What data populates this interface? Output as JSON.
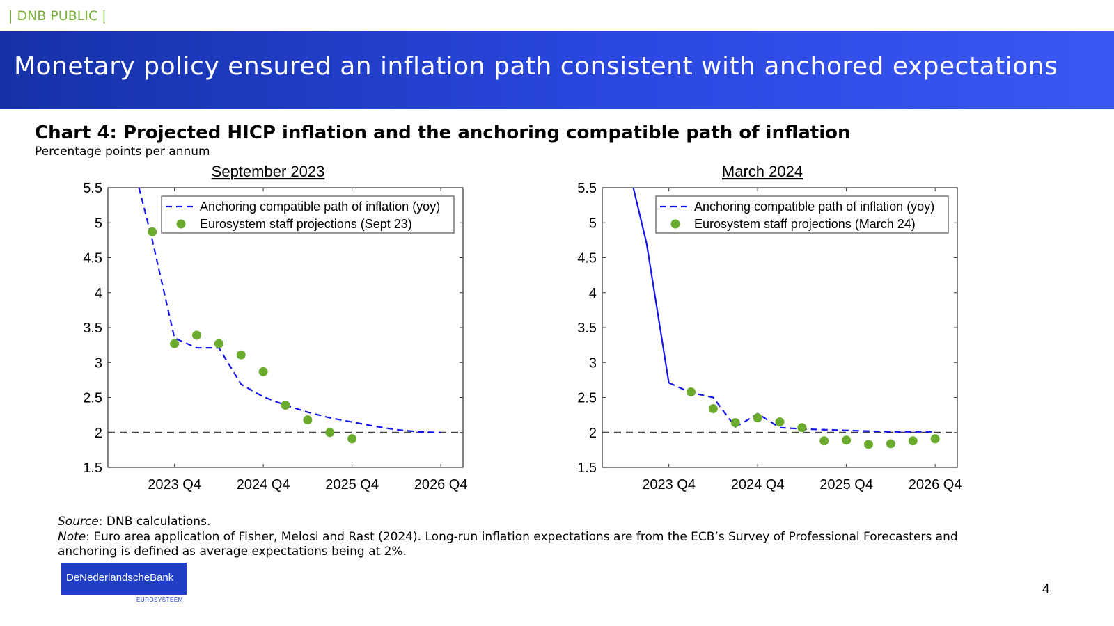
{
  "header": {
    "classification": "| DNB PUBLIC |",
    "title": "Monetary policy ensured an inflation path consistent with anchored expectations"
  },
  "chart": {
    "title": "Chart 4: Projected HICP inflation and the anchoring compatible path of inflation",
    "subtitle": "Percentage points per annum"
  },
  "chart_data": [
    {
      "type": "line",
      "title": "September 2023",
      "xlabel": "",
      "ylabel": "",
      "ylim": [
        1.5,
        5.5
      ],
      "yticks": [
        "1.5",
        "2",
        "2.5",
        "3",
        "3.5",
        "4",
        "4.5",
        "5",
        "5.5"
      ],
      "xlim": [
        -3,
        13
      ],
      "xticks": [
        {
          "x": 0,
          "label": "2023 Q4"
        },
        {
          "x": 4,
          "label": "2024 Q4"
        },
        {
          "x": 8,
          "label": "2025 Q4"
        },
        {
          "x": 12,
          "label": "2026 Q4"
        }
      ],
      "reference_line": 2,
      "legend_position": "top-right",
      "series": [
        {
          "name": "Anchoring compatible path of inflation (yoy)",
          "style": "dashed",
          "color": "#1515f0",
          "x": [
            -1.6,
            -1,
            0,
            1,
            2,
            3,
            4,
            5,
            6,
            7,
            8,
            9,
            10,
            11,
            12
          ],
          "values": [
            5.5,
            4.75,
            3.35,
            3.21,
            3.21,
            2.69,
            2.51,
            2.39,
            2.29,
            2.21,
            2.15,
            2.09,
            2.04,
            2.01,
            2.0
          ]
        },
        {
          "name": "Eurosystem staff projections (Sept 23)",
          "style": "markers",
          "color": "#6aaa2c",
          "x": [
            -1,
            0,
            1,
            2,
            3,
            4,
            5,
            6,
            7,
            8
          ],
          "values": [
            4.87,
            3.27,
            3.39,
            3.27,
            3.11,
            2.87,
            2.39,
            2.18,
            2.0,
            1.91
          ]
        }
      ]
    },
    {
      "type": "line",
      "title": "March 2024",
      "xlabel": "",
      "ylabel": "",
      "ylim": [
        1.5,
        5.5
      ],
      "yticks": [
        "1.5",
        "2",
        "2.5",
        "3",
        "3.5",
        "4",
        "4.5",
        "5",
        "5.5"
      ],
      "xlim": [
        -3,
        13
      ],
      "xticks": [
        {
          "x": 0,
          "label": "2023 Q4"
        },
        {
          "x": 4,
          "label": "2024 Q4"
        },
        {
          "x": 8,
          "label": "2025 Q4"
        },
        {
          "x": 12,
          "label": "2026 Q4"
        }
      ],
      "reference_line": 2,
      "legend_position": "top-right",
      "series": [
        {
          "name": "Anchoring compatible path of inflation (yoy)",
          "style": "dashed-after-solid",
          "color": "#1515f0",
          "solid_until_x": 0,
          "x": [
            -1.6,
            -1,
            0,
            1,
            2,
            3,
            3.5,
            4,
            5,
            6,
            7,
            8,
            9,
            10,
            11,
            12
          ],
          "values": [
            5.5,
            4.7,
            2.71,
            2.57,
            2.5,
            2.08,
            2.17,
            2.27,
            2.07,
            2.05,
            2.04,
            2.03,
            2.02,
            2.01,
            2.01,
            2.01
          ]
        },
        {
          "name": "Eurosystem staff projections (March 24)",
          "style": "markers",
          "color": "#6aaa2c",
          "x": [
            1,
            2,
            3,
            4,
            5,
            6,
            7,
            8,
            9,
            10,
            11,
            12
          ],
          "values": [
            2.58,
            2.34,
            2.14,
            2.21,
            2.15,
            2.07,
            1.88,
            1.89,
            1.83,
            1.84,
            1.88,
            1.91
          ]
        }
      ]
    }
  ],
  "footer": {
    "source_label": "Source",
    "source_text": ": DNB calculations.",
    "note_label": "Note",
    "note_text": ": Euro area application of Fisher, Melosi and Rast (2024). Long-run inflation expectations are from the ECB’s Survey of Professional Forecasters and anchoring is defined as average expectations being at 2%.",
    "logo_text": "DeNederlandscheBank",
    "logo_sub": "EUROSYSTEEM",
    "page_number": "4"
  }
}
